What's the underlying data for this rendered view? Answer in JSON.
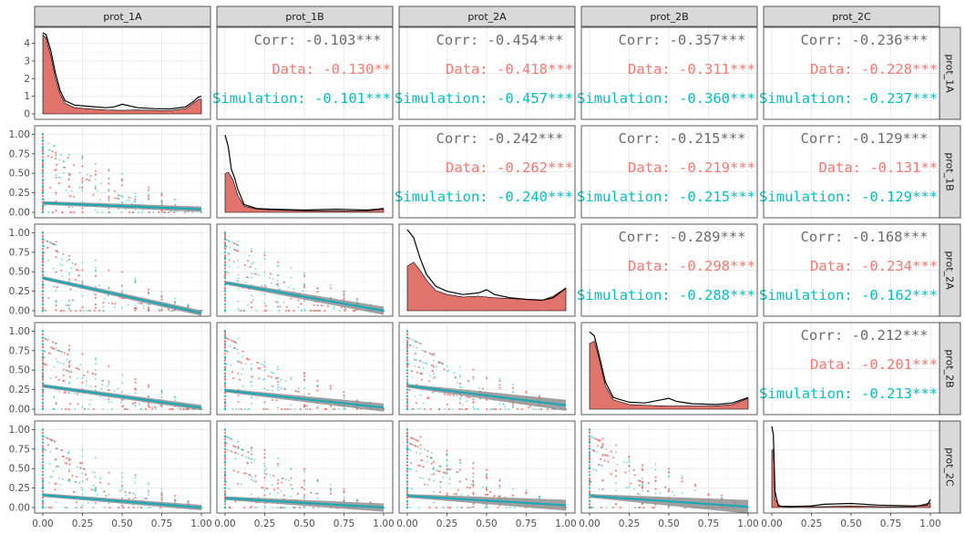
{
  "chart_data": {
    "type": "scatter",
    "variables": [
      "prot_1A",
      "prot_1B",
      "prot_2A",
      "prot_2B",
      "prot_2C"
    ],
    "layout": "pairs-matrix",
    "groups": [
      "Data",
      "Simulation"
    ],
    "colors": {
      "data": "#F8766D",
      "simulation": "#00BFC4",
      "corr": "#6b6b6b",
      "density_fill": "#E0736B",
      "density_line": "#000000",
      "regression": "#1EA7B5",
      "ribbon": "#8f8f8f",
      "strip_bg": "#d9d9d9",
      "grid": "#ebebeb",
      "panel_border": "#333333"
    },
    "x_ticks": [
      "0.00",
      "0.25",
      "0.50",
      "0.75",
      "1.00"
    ],
    "y_ticks_unit": [
      "0.00",
      "0.25",
      "0.50",
      "0.75",
      "1.00"
    ],
    "y_ticks_density": [
      "0",
      "1",
      "2",
      "3",
      "4"
    ],
    "xlim": [
      0,
      1
    ],
    "density_ylim": [
      0,
      4.6
    ],
    "correlations": [
      {
        "row": "prot_1A",
        "col": "prot_1B",
        "corr": "Corr: -0.103***",
        "data": "Data: -0.130**",
        "simulation": "Simulation: -0.101***"
      },
      {
        "row": "prot_1A",
        "col": "prot_2A",
        "corr": "Corr: -0.454***",
        "data": "Data: -0.418***",
        "simulation": "Simulation: -0.457***"
      },
      {
        "row": "prot_1A",
        "col": "prot_2B",
        "corr": "Corr: -0.357***",
        "data": "Data: -0.311***",
        "simulation": "Simulation: -0.360***"
      },
      {
        "row": "prot_1A",
        "col": "prot_2C",
        "corr": "Corr: -0.236***",
        "data": "Data: -0.228***",
        "simulation": "Simulation: -0.237***"
      },
      {
        "row": "prot_1B",
        "col": "prot_2A",
        "corr": "Corr: -0.242***",
        "data": "Data: -0.262***",
        "simulation": "Simulation: -0.240***"
      },
      {
        "row": "prot_1B",
        "col": "prot_2B",
        "corr": "Corr: -0.215***",
        "data": "Data: -0.219***",
        "simulation": "Simulation: -0.215***"
      },
      {
        "row": "prot_1B",
        "col": "prot_2C",
        "corr": "Corr: -0.129***",
        "data": "Data: -0.131**",
        "simulation": "Simulation: -0.129***"
      },
      {
        "row": "prot_2A",
        "col": "prot_2B",
        "corr": "Corr: -0.289***",
        "data": "Data: -0.298***",
        "simulation": "Simulation: -0.288***"
      },
      {
        "row": "prot_2A",
        "col": "prot_2C",
        "corr": "Corr: -0.168***",
        "data": "Data: -0.234***",
        "simulation": "Simulation: -0.162***"
      },
      {
        "row": "prot_2B",
        "col": "prot_2C",
        "corr": "Corr: -0.212***",
        "data": "Data: -0.201***",
        "simulation": "Simulation: -0.213***"
      }
    ],
    "regressions": [
      {
        "row": "prot_1B",
        "col": "prot_1A",
        "y0": 0.12,
        "y1": 0.04
      },
      {
        "row": "prot_2A",
        "col": "prot_1A",
        "y0": 0.42,
        "y1": -0.03
      },
      {
        "row": "prot_2A",
        "col": "prot_1B",
        "y0": 0.36,
        "y1": 0.0
      },
      {
        "row": "prot_2B",
        "col": "prot_1A",
        "y0": 0.3,
        "y1": 0.02
      },
      {
        "row": "prot_2B",
        "col": "prot_1B",
        "y0": 0.24,
        "y1": 0.02
      },
      {
        "row": "prot_2B",
        "col": "prot_2A",
        "y0": 0.3,
        "y1": 0.05
      },
      {
        "row": "prot_2C",
        "col": "prot_1A",
        "y0": 0.16,
        "y1": 0.0
      },
      {
        "row": "prot_2C",
        "col": "prot_1B",
        "y0": 0.12,
        "y1": 0.0
      },
      {
        "row": "prot_2C",
        "col": "prot_2A",
        "y0": 0.15,
        "y1": 0.03
      },
      {
        "row": "prot_2C",
        "col": "prot_2B",
        "y0": 0.15,
        "y1": 0.01
      }
    ],
    "densities": [
      {
        "variable": "prot_1A",
        "ymax": 4.6,
        "data": [
          [
            0,
            4.5
          ],
          [
            0.02,
            4.3
          ],
          [
            0.05,
            3.3
          ],
          [
            0.08,
            2.0
          ],
          [
            0.11,
            1.1
          ],
          [
            0.14,
            0.6
          ],
          [
            0.2,
            0.35
          ],
          [
            0.3,
            0.28
          ],
          [
            0.4,
            0.22
          ],
          [
            0.5,
            0.2
          ],
          [
            0.6,
            0.22
          ],
          [
            0.7,
            0.2
          ],
          [
            0.8,
            0.18
          ],
          [
            0.9,
            0.3
          ],
          [
            0.95,
            0.6
          ],
          [
            0.98,
            0.8
          ],
          [
            1.0,
            0.85
          ]
        ],
        "sim": [
          [
            0,
            4.6
          ],
          [
            0.02,
            4.5
          ],
          [
            0.05,
            3.6
          ],
          [
            0.08,
            2.3
          ],
          [
            0.11,
            1.3
          ],
          [
            0.14,
            0.75
          ],
          [
            0.2,
            0.5
          ],
          [
            0.3,
            0.42
          ],
          [
            0.4,
            0.35
          ],
          [
            0.45,
            0.4
          ],
          [
            0.5,
            0.55
          ],
          [
            0.55,
            0.45
          ],
          [
            0.6,
            0.35
          ],
          [
            0.7,
            0.3
          ],
          [
            0.8,
            0.28
          ],
          [
            0.9,
            0.4
          ],
          [
            0.95,
            0.7
          ],
          [
            0.98,
            0.95
          ],
          [
            1.0,
            1.0
          ]
        ]
      },
      {
        "variable": "prot_1B",
        "ymax": 1.05,
        "data": [
          [
            0,
            0.5
          ],
          [
            0.02,
            0.52
          ],
          [
            0.05,
            0.42
          ],
          [
            0.08,
            0.22
          ],
          [
            0.12,
            0.08
          ],
          [
            0.2,
            0.04
          ],
          [
            0.3,
            0.03
          ],
          [
            0.5,
            0.02
          ],
          [
            0.7,
            0.02
          ],
          [
            0.9,
            0.02
          ],
          [
            1.0,
            0.04
          ]
        ],
        "sim": [
          [
            0,
            1.0
          ],
          [
            0.02,
            0.85
          ],
          [
            0.04,
            0.55
          ],
          [
            0.06,
            0.45
          ],
          [
            0.08,
            0.3
          ],
          [
            0.12,
            0.1
          ],
          [
            0.2,
            0.05
          ],
          [
            0.3,
            0.04
          ],
          [
            0.5,
            0.03
          ],
          [
            0.7,
            0.04
          ],
          [
            0.9,
            0.03
          ],
          [
            1.0,
            0.05
          ]
        ]
      },
      {
        "variable": "prot_2A",
        "ymax": 1.0,
        "data": [
          [
            0,
            0.55
          ],
          [
            0.04,
            0.6
          ],
          [
            0.08,
            0.5
          ],
          [
            0.12,
            0.38
          ],
          [
            0.18,
            0.25
          ],
          [
            0.25,
            0.2
          ],
          [
            0.35,
            0.17
          ],
          [
            0.45,
            0.18
          ],
          [
            0.55,
            0.16
          ],
          [
            0.65,
            0.15
          ],
          [
            0.75,
            0.14
          ],
          [
            0.85,
            0.13
          ],
          [
            0.92,
            0.18
          ],
          [
            1.0,
            0.28
          ]
        ],
        "sim": [
          [
            0,
            1.0
          ],
          [
            0.04,
            0.9
          ],
          [
            0.08,
            0.65
          ],
          [
            0.12,
            0.45
          ],
          [
            0.18,
            0.3
          ],
          [
            0.25,
            0.24
          ],
          [
            0.35,
            0.2
          ],
          [
            0.45,
            0.22
          ],
          [
            0.5,
            0.26
          ],
          [
            0.55,
            0.2
          ],
          [
            0.65,
            0.16
          ],
          [
            0.75,
            0.14
          ],
          [
            0.85,
            0.13
          ],
          [
            0.92,
            0.16
          ],
          [
            1.0,
            0.28
          ]
        ]
      },
      {
        "variable": "prot_2B",
        "ymax": 1.05,
        "data": [
          [
            0,
            0.85
          ],
          [
            0.03,
            0.88
          ],
          [
            0.06,
            0.65
          ],
          [
            0.1,
            0.3
          ],
          [
            0.15,
            0.12
          ],
          [
            0.25,
            0.06
          ],
          [
            0.35,
            0.05
          ],
          [
            0.5,
            0.04
          ],
          [
            0.65,
            0.04
          ],
          [
            0.8,
            0.04
          ],
          [
            0.9,
            0.06
          ],
          [
            1.0,
            0.14
          ]
        ],
        "sim": [
          [
            0,
            1.0
          ],
          [
            0.03,
            0.95
          ],
          [
            0.06,
            0.7
          ],
          [
            0.1,
            0.35
          ],
          [
            0.15,
            0.15
          ],
          [
            0.25,
            0.09
          ],
          [
            0.35,
            0.08
          ],
          [
            0.45,
            0.12
          ],
          [
            0.5,
            0.14
          ],
          [
            0.55,
            0.1
          ],
          [
            0.65,
            0.07
          ],
          [
            0.8,
            0.06
          ],
          [
            0.9,
            0.08
          ],
          [
            1.0,
            0.15
          ]
        ]
      },
      {
        "variable": "prot_2C",
        "ymax": 1.0,
        "data": [
          [
            0,
            0.7
          ],
          [
            0.01,
            0.72
          ],
          [
            0.02,
            0.1
          ],
          [
            0.05,
            0.02
          ],
          [
            0.3,
            0.01
          ],
          [
            0.5,
            0.02
          ],
          [
            0.7,
            0.01
          ],
          [
            0.9,
            0.01
          ],
          [
            1.0,
            0.06
          ]
        ],
        "sim": [
          [
            0,
            1.0
          ],
          [
            0.01,
            0.9
          ],
          [
            0.02,
            0.2
          ],
          [
            0.04,
            0.02
          ],
          [
            0.1,
            0.01
          ],
          [
            0.25,
            0.02
          ],
          [
            0.33,
            0.04
          ],
          [
            0.5,
            0.05
          ],
          [
            0.67,
            0.03
          ],
          [
            0.9,
            0.02
          ],
          [
            0.98,
            0.03
          ],
          [
            1.0,
            0.1
          ]
        ]
      }
    ]
  }
}
